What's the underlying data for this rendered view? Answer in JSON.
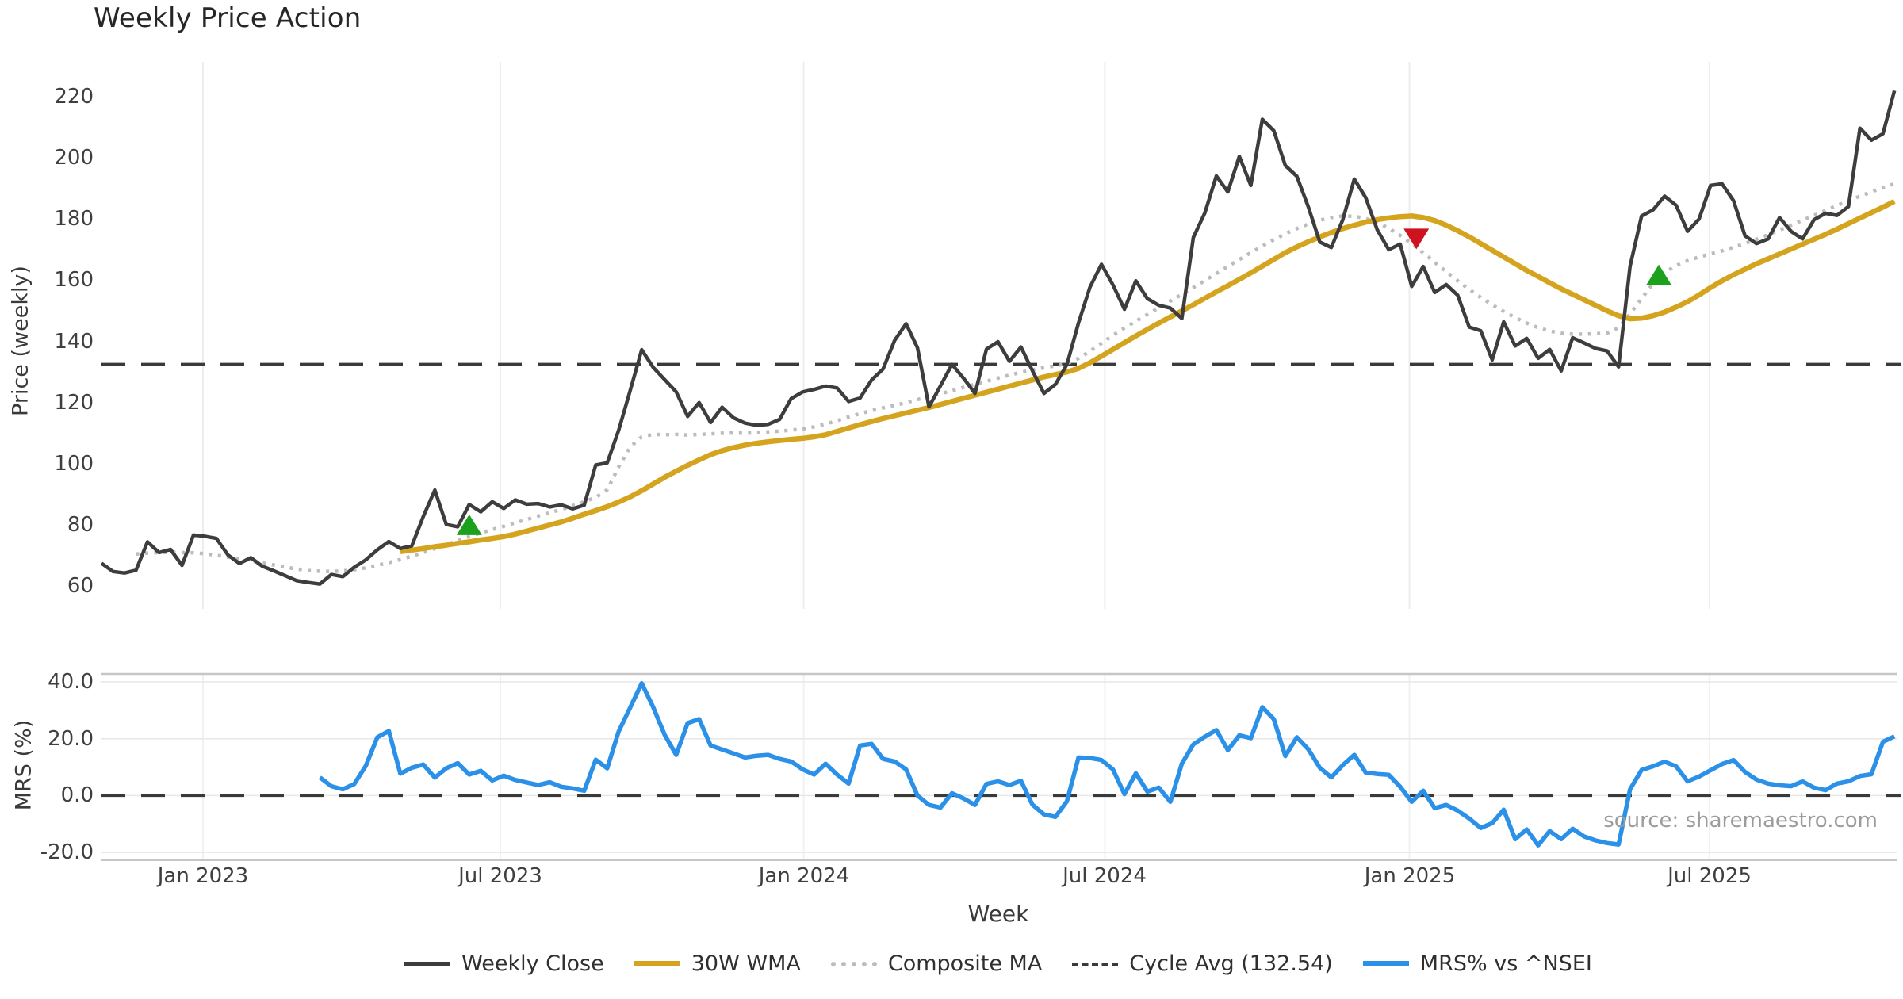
{
  "title": "Weekly Price Action",
  "source_note": "source: sharemaestro.com",
  "axes": {
    "price_axis_title": "Price (weekly)",
    "mrs_axis_title": "MRS (%)",
    "x_axis_title": "Week",
    "x_ticks": [
      {
        "label": "Jan 2023",
        "week": 8.83
      },
      {
        "label": "Jul 2023",
        "week": 34.7
      },
      {
        "label": "Jan 2024",
        "week": 61.1
      },
      {
        "label": "Jul 2024",
        "week": 87.3
      },
      {
        "label": "Jan 2025",
        "week": 113.8
      },
      {
        "label": "Jul 2025",
        "week": 139.9
      }
    ],
    "price_ticks": [
      220,
      200,
      180,
      160,
      140,
      120,
      100,
      80,
      60
    ],
    "mrs_ticks": [
      {
        "label": "40.0",
        "value": 40
      },
      {
        "label": "20.0",
        "value": 20
      },
      {
        "label": "0.0",
        "value": 0
      },
      {
        "label": "-20.0",
        "value": -20
      }
    ]
  },
  "legend": [
    {
      "label": "Weekly Close",
      "color": "#3d3d3d",
      "style": "solid",
      "thickness": 6
    },
    {
      "label": "30W WMA",
      "color": "#d5a41f",
      "style": "solid",
      "thickness": 7
    },
    {
      "label": "Composite MA",
      "color": "#bcbcbc",
      "style": "dotted",
      "thickness": 6
    },
    {
      "label": "Cycle Avg (132.54)",
      "color": "#3a3a3a",
      "style": "dashed",
      "thickness": 4
    },
    {
      "label": "MRS% vs ^NSEI",
      "color": "#2b90e8",
      "style": "solid",
      "thickness": 7
    }
  ],
  "colors": {
    "background": "#ffffff",
    "grid": "#ededed",
    "panel_border": "#c6c6c6",
    "panel_grid_h": "#e7e7e7",
    "text": "#3f3f3f",
    "muted_text": "#9b9b9b",
    "weekly_close": "#3d3d3d",
    "wma": "#d5a41f",
    "composite": "#bcbcbc",
    "cycle_avg": "#3a3a3a",
    "mrs": "#2b90e8",
    "buy_marker": "#1ba11b",
    "sell_marker": "#cf1220"
  },
  "chart_data": {
    "type": "line",
    "title": "Weekly Price Action",
    "xlabel": "Week",
    "x_unit": "week_index_from_2022-11",
    "x_tick_weeks": [
      8.83,
      34.7,
      61.1,
      87.3,
      113.8,
      139.9
    ],
    "x_tick_labels": [
      "Jan 2023",
      "Jul 2023",
      "Jan 2024",
      "Jul 2024",
      "Jan 2025",
      "Jul 2025"
    ],
    "panels": [
      {
        "name": "price",
        "ylabel": "Price (weekly)",
        "ylim": [
          55,
          228
        ],
        "yticks": [
          220,
          200,
          180,
          160,
          140,
          120,
          100,
          80,
          60
        ],
        "cycle_avg": 132.54,
        "series": [
          {
            "name": "Weekly Close",
            "color": "#3d3d3d",
            "style": "solid",
            "width": 4.5,
            "start_week": 0,
            "values": [
              67.5,
              64.8,
              64.3,
              65.2,
              74.5,
              71,
              72,
              66.8,
              76.7,
              76.3,
              75.6,
              70.2,
              67.4,
              69.3,
              66.5,
              65,
              63.4,
              61.8,
              61.2,
              60.7,
              63.8,
              63.1,
              66.2,
              68.6,
              71.9,
              74.6,
              72.3,
              73.2,
              82.8,
              91.4,
              80.2,
              79.4,
              86.7,
              84.3,
              87.6,
              85.4,
              88.2,
              86.8,
              87,
              85.9,
              86.6,
              85.3,
              86.5,
              99.6,
              100.3,
              111,
              124,
              137.3,
              131.5,
              127.5,
              123.5,
              115.5,
              120,
              113.5,
              118.5,
              115,
              113.3,
              112.6,
              112.9,
              114.5,
              121.3,
              123.5,
              124.3,
              125.4,
              124.8,
              120.4,
              121.5,
              127.4,
              131,
              140.3,
              145.8,
              137.9,
              118.6,
              125.5,
              132.5,
              128,
              123,
              137.5,
              139.9,
              133.5,
              138.2,
              130.4,
              123,
              126,
              132.5,
              146,
              157.7,
              165.2,
              158.5,
              150.5,
              159.8,
              154,
              151.8,
              150.9,
              147.5,
              174,
              182,
              194.1,
              188.9,
              200.5,
              191,
              212.6,
              208.9,
              197.5,
              194,
              184,
              172.5,
              170.7,
              179.8,
              193.1,
              187,
              176.5,
              170,
              171.8,
              158,
              164.5,
              156,
              158.6,
              155.1,
              144.7,
              143.5,
              134,
              146.4,
              138.5,
              141,
              134.5,
              137.4,
              130.4,
              141.2,
              139.5,
              137.7,
              136.9,
              131.7,
              164.6,
              181,
              183,
              187.5,
              184.5,
              176,
              180,
              191,
              191.5,
              186,
              174.5,
              172,
              173.5,
              180.5,
              176,
              173.5,
              179.8,
              181.9,
              181.2,
              184.1,
              209.7,
              205.8,
              207.9,
              222
            ]
          },
          {
            "name": "30W WMA",
            "color": "#d5a41f",
            "style": "solid",
            "width": 6.5,
            "start_week": 26,
            "values": [
              71.3,
              71.8,
              72.3,
              72.9,
              73.4,
              74,
              74.5,
              75.1,
              75.6,
              76.2,
              77,
              78,
              79,
              80,
              81,
              82.2,
              83.5,
              84.7,
              86,
              87.5,
              89.2,
              91.2,
              93.4,
              95.6,
              97.6,
              99.5,
              101.3,
              103,
              104.3,
              105.3,
              106.1,
              106.7,
              107.2,
              107.6,
              108,
              108.3,
              108.8,
              109.5,
              110.6,
              111.7,
              112.8,
              113.8,
              114.8,
              115.7,
              116.6,
              117.5,
              118.4,
              119.4,
              120.4,
              121.4,
              122.4,
              123.4,
              124.4,
              125.4,
              126.4,
              127.4,
              128.4,
              129.2,
              130,
              131.2,
              133,
              135.2,
              137.4,
              139.6,
              141.8,
              143.9,
              146,
              148,
              150,
              152,
              154.1,
              156.2,
              158.2,
              160.3,
              162.4,
              164.6,
              166.8,
              169,
              170.9,
              172.6,
              174.2,
              175.6,
              176.9,
              178,
              179,
              179.8,
              180.4,
              180.8,
              181,
              180.5,
              179.5,
              178,
              176.2,
              174.2,
              172,
              169.8,
              167.6,
              165.4,
              163.2,
              161.2,
              159.2,
              157.2,
              155.4,
              153.6,
              151.8,
              150,
              148.4,
              147.4,
              147.6,
              148.4,
              149.6,
              151.2,
              153,
              155.2,
              157.6,
              159.8,
              161.8,
              163.6,
              165.4,
              167,
              168.6,
              170.2,
              171.8,
              173.4,
              175,
              176.7,
              178.5,
              180.3,
              182.1,
              183.9,
              185.8
            ]
          },
          {
            "name": "Composite MA",
            "color": "#bcbcbc",
            "style": "dotted",
            "width": 4.5,
            "start_week": 3,
            "values": [
              70.5,
              70.8,
              71,
              71.1,
              71,
              70.9,
              70.6,
              70.1,
              69.5,
              68.9,
              68.3,
              67.6,
              66.9,
              66.2,
              65.6,
              65.1,
              64.9,
              64.8,
              65,
              65.4,
              66,
              66.8,
              67.7,
              68.7,
              69.8,
              71,
              72.3,
              73.6,
              74.9,
              76.2,
              77.4,
              78.5,
              79.6,
              80.7,
              81.8,
              82.9,
              84,
              85.1,
              86.3,
              87.6,
              89,
              91.5,
              99,
              105.5,
              108.8,
              109.6,
              109.5,
              109.6,
              109.4,
              109.6,
              109.8,
              110,
              110.1,
              110,
              110.2,
              110.4,
              110.7,
              111,
              111.4,
              112.1,
              113,
              114.1,
              115.3,
              116.4,
              117.4,
              118.3,
              119.1,
              120,
              121,
              121.9,
              122.9,
              123.9,
              125,
              126,
              127,
              128,
              129,
              129.9,
              130.7,
              131.4,
              132,
              132.8,
              134.5,
              136.8,
              139.4,
              142,
              144.4,
              146.6,
              148.8,
              151,
              153.2,
              155.4,
              157.6,
              159.9,
              162.2,
              164.5,
              166.8,
              169,
              171.2,
              173.3,
              175.2,
              176.9,
              178.4,
              179.6,
              180.5,
              181,
              180.9,
              180.2,
              178.9,
              177,
              174.7,
              172,
              169,
              165.9,
              162.8,
              159.8,
              157,
              154.4,
              152,
              149.8,
              147.8,
              146,
              144.5,
              143.4,
              142.7,
              142.4,
              142.4,
              142.5,
              142.7,
              144.5,
              149,
              154,
              159,
              162.5,
              164.8,
              166.4,
              167.6,
              168.6,
              169.6,
              170.8,
              172,
              173.4,
              174.9,
              176.4,
              178,
              179.6,
              181.2,
              182.8,
              184.4,
              186,
              187.5,
              188.9,
              190.3,
              191.5
            ]
          }
        ],
        "markers": [
          {
            "shape": "triangle-up",
            "color": "#1ba11b",
            "week": 32,
            "value": 79.8,
            "meaning": "buy-signal"
          },
          {
            "shape": "triangle-up",
            "color": "#1ba11b",
            "week": 135.5,
            "value": 161.5,
            "meaning": "buy-signal"
          },
          {
            "shape": "triangle-down",
            "color": "#cf1220",
            "week": 114.4,
            "value": 173.5,
            "meaning": "sell-signal"
          }
        ]
      },
      {
        "name": "mrs",
        "ylabel": "MRS (%)",
        "ylim": [
          -27,
          43
        ],
        "yticks": [
          40,
          20,
          0,
          -20
        ],
        "zero_line": true,
        "series": [
          {
            "name": "MRS% vs ^NSEI",
            "color": "#2b90e8",
            "style": "solid",
            "width": 5.5,
            "start_week": 19,
            "values": [
              6.4,
              3.3,
              2.2,
              4.1,
              10.5,
              20.5,
              22.7,
              7.7,
              9.8,
              10.9,
              6.3,
              9.6,
              11.4,
              7.4,
              8.7,
              5.3,
              7,
              5.5,
              4.6,
              3.7,
              4.7,
              3.1,
              2.5,
              1.7,
              12.6,
              9.6,
              22.6,
              31,
              39.5,
              31.1,
              21.3,
              14.3,
              25.5,
              26.9,
              17.6,
              16.2,
              14.8,
              13.4,
              14,
              14.3,
              12.9,
              12,
              9.2,
              7.4,
              11.2,
              7.4,
              4.2,
              17.6,
              18.2,
              12.9,
              12,
              9.2,
              0,
              -3.3,
              -4.2,
              0.8,
              -1,
              -3.3,
              4.1,
              5,
              3.7,
              5.2,
              -3.2,
              -6.6,
              -7.5,
              -2,
              13.4,
              13.2,
              12.5,
              9.2,
              0.5,
              7.8,
              1.4,
              2.8,
              -2.2,
              11.2,
              18,
              20.7,
              23,
              16,
              21.2,
              20.2,
              31.1,
              26.9,
              13.9,
              20.5,
              16.3,
              9.8,
              6.4,
              10.7,
              14.3,
              8.1,
              7.6,
              7.3,
              3.1,
              -2.2,
              1.7,
              -4.4,
              -3.3,
              -5.3,
              -8.1,
              -11.4,
              -9.7,
              -5,
              -15.3,
              -11.9,
              -17.5,
              -12.5,
              -15.3,
              -11.7,
              -14.4,
              -15.8,
              -16.7,
              -17.2,
              2.2,
              9,
              10.3,
              11.9,
              10.3,
              5,
              6.7,
              8.9,
              11.1,
              12.5,
              8.3,
              5.6,
              4.2,
              3.6,
              3.3,
              5,
              2.8,
              1.9,
              4.2,
              5,
              6.9,
              7.5,
              18.9,
              20.8
            ]
          }
        ]
      }
    ]
  }
}
